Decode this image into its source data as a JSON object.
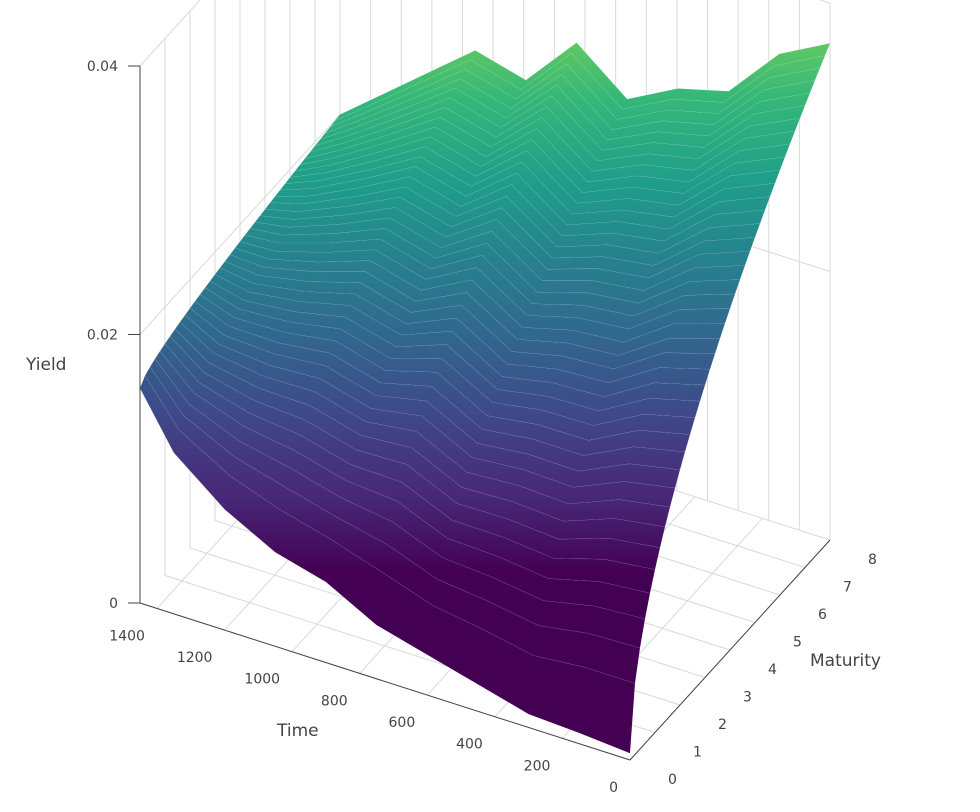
{
  "chart_data": {
    "type": "surface",
    "title": "",
    "colorscale": "viridis",
    "colors": {
      "low": "#440154",
      "high": "#dde318",
      "grid": "#d9d9d9",
      "axis": "#444444"
    },
    "axes": {
      "x": {
        "label": "Time",
        "range": [
          0,
          1450
        ],
        "ticks": [
          "1400",
          "1200",
          "1000",
          "800",
          "600",
          "400",
          "200",
          "0"
        ]
      },
      "y": {
        "label": "Maturity",
        "range": [
          0,
          8
        ],
        "ticks": [
          "0",
          "1",
          "2",
          "3",
          "4",
          "5",
          "6",
          "7",
          "8"
        ]
      },
      "z": {
        "label": "Yield",
        "range": [
          0,
          0.04
        ],
        "ticks": [
          "0",
          "0.02",
          "0.04"
        ]
      }
    },
    "surface_profile": {
      "maturity": [
        0,
        0.25,
        0.5,
        1,
        2,
        3,
        5,
        7,
        8
      ],
      "time": [
        0,
        150,
        300,
        450,
        600,
        750,
        900,
        1050,
        1200,
        1350,
        1450
      ],
      "yield_max_maturity": [
        0.037,
        0.035,
        0.031,
        0.03,
        0.028,
        0.031,
        0.027,
        0.028,
        0.025,
        0.022,
        0.02
      ],
      "yield_min_maturity": [
        0.0005,
        0.0008,
        0.001,
        0.002,
        0.003,
        0.004,
        0.006,
        0.007,
        0.009,
        0.012,
        0.016
      ]
    }
  }
}
